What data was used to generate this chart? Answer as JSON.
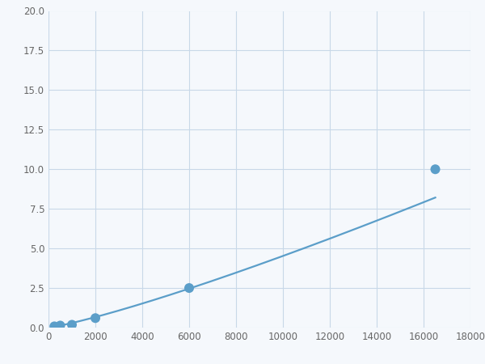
{
  "x": [
    250,
    500,
    1000,
    2000,
    6000,
    16500
  ],
  "y": [
    0.08,
    0.13,
    0.18,
    0.6,
    2.5,
    10.0
  ],
  "line_color": "#5b9ec9",
  "marker_color": "#5b9ec9",
  "marker_size": 5,
  "xlim": [
    0,
    18000
  ],
  "ylim": [
    0,
    20.0
  ],
  "xticks": [
    0,
    2000,
    4000,
    6000,
    8000,
    10000,
    12000,
    14000,
    16000,
    18000
  ],
  "yticks": [
    0.0,
    2.5,
    5.0,
    7.5,
    10.0,
    12.5,
    15.0,
    17.5,
    20.0
  ],
  "grid_color": "#c8d8e8",
  "background_color": "#f5f8fc",
  "linewidth": 1.6,
  "tick_labelsize": 8.5,
  "tick_color": "#666666"
}
